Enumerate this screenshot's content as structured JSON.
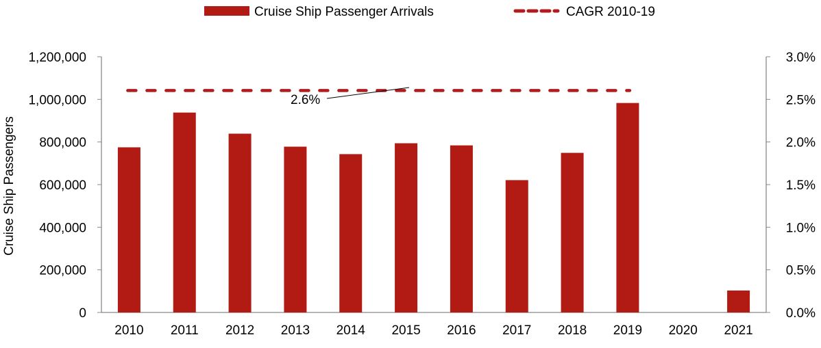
{
  "chart_data": {
    "type": "bar",
    "title": "",
    "xlabel": "",
    "ylabel": "Cruise Ship Passengers",
    "ylim": [
      0,
      1200000
    ],
    "y2lim": [
      0,
      0.03
    ],
    "grid": false,
    "legend_position": "top",
    "categories": [
      "2010",
      "2011",
      "2012",
      "2013",
      "2014",
      "2015",
      "2016",
      "2017",
      "2018",
      "2019",
      "2020",
      "2021"
    ],
    "series": [
      {
        "name": "Cruise Ship Passenger Arrivals",
        "type": "bar",
        "color": "#B11B13",
        "values": [
          775000,
          938000,
          839000,
          778000,
          743000,
          794000,
          784000,
          621000,
          749000,
          983000,
          0,
          103000
        ]
      },
      {
        "name": "CAGR 2010-19",
        "type": "line",
        "style": "dashed",
        "axis": "right",
        "color": "#B11B1E",
        "value": 0.026,
        "x_range": [
          "2010",
          "2019"
        ]
      }
    ],
    "annotation": "2.6%",
    "y_ticks": [
      "0",
      "200,000",
      "400,000",
      "600,000",
      "800,000",
      "1,000,000",
      "1,200,000"
    ],
    "y2_ticks": [
      "0.0%",
      "0.5%",
      "1.0%",
      "1.5%",
      "2.0%",
      "2.5%",
      "3.0%"
    ]
  }
}
